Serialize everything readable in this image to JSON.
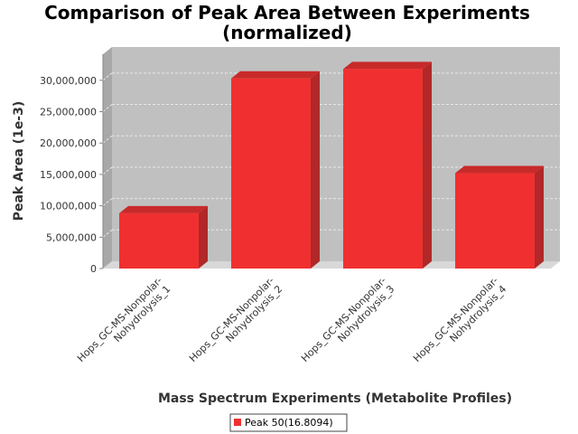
{
  "chart_data": {
    "type": "bar",
    "title_lines": [
      "Comparison of Peak Area Between Experiments",
      "(normalized)"
    ],
    "xlabel": "Mass Spectrum Experiments (Metabolite Profiles)",
    "ylabel": "Peak Area (1e-3)",
    "categories": [
      [
        "Hops_GC-MS-Nonpolar-",
        "Nohydrolysis_1"
      ],
      [
        "Hops_GC-MS-Nonpolar-",
        "Nohydrolysis_2"
      ],
      [
        "Hops_GC-MS-Nonpolar-",
        "Nohydrolysis_3"
      ],
      [
        "Hops_GC-MS-Nonpolar-",
        "Nohydrolysis_4"
      ]
    ],
    "series": [
      {
        "name": "Peak 50(16.8094)",
        "values": [
          8800000,
          30300000,
          31800000,
          15200000
        ]
      }
    ],
    "ylim": [
      0,
      33000000
    ],
    "yticks": [
      0,
      5000000,
      10000000,
      15000000,
      20000000,
      25000000,
      30000000
    ],
    "ytick_labels": [
      "0",
      "5,000,000",
      "10,000,000",
      "15,000,000",
      "20,000,000",
      "25,000,000",
      "30,000,000"
    ],
    "grid": true,
    "legend_position": "bottom-center",
    "colors": {
      "bar_front": "#f03030",
      "bar_side": "#b02828",
      "bar_top": "#c82a2a",
      "plot_back": "#c0c0c0",
      "plot_floor": "#d8d8d8",
      "plot_side": "#a8a8a8",
      "grid": "#e8e8e8"
    }
  }
}
